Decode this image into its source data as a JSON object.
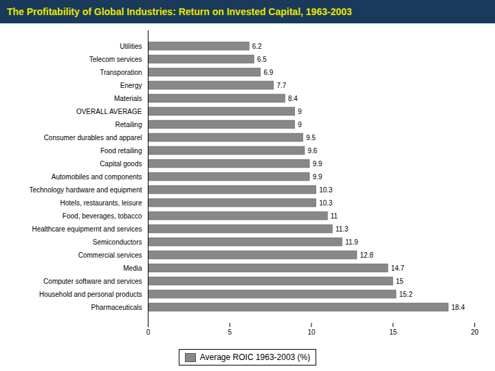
{
  "chart_data": {
    "type": "bar",
    "orientation": "horizontal",
    "title": "The Profitability of Global Industries: Return on Invested Capital, 1963-2003",
    "categories": [
      "Pharmaceuticals",
      "Household and personal products",
      "Computer software and services",
      "Media",
      "Commercial services",
      "Semiconductors",
      "Healthcare equipmernt and services",
      "Food, beverages, tobacco",
      "Hotels, restaurants, leisure",
      "Technology hardware and equipment",
      "Automobiles and components",
      "Capital goods",
      "Food retailing",
      "Consumer durables and apparel",
      "Retailing",
      "OVERALL AVERAGE",
      "Materials",
      "Energy",
      "Transporation",
      "Telecom services",
      "Utilities"
    ],
    "series": [
      {
        "name": "Average ROIC 1963-2003 (%)",
        "color": "#888888",
        "values": [
          18.4,
          15.2,
          15.0,
          14.7,
          12.8,
          11.9,
          11.3,
          11.0,
          10.3,
          10.3,
          9.9,
          9.9,
          9.6,
          9.5,
          9.0,
          9.0,
          8.4,
          7.7,
          6.9,
          6.5,
          6.2
        ]
      }
    ],
    "xlim": [
      0,
      20
    ],
    "xticks": [
      0,
      5,
      10,
      15,
      20
    ],
    "data_labels": true,
    "grid": false,
    "legend": "bottom"
  }
}
